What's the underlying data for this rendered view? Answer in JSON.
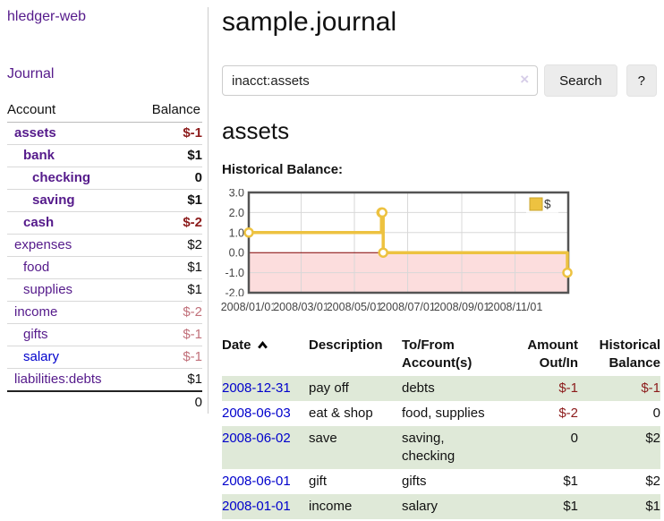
{
  "app": {
    "brand": "hledger-web"
  },
  "nav": {
    "journal": "Journal"
  },
  "sidebar": {
    "columns": {
      "account": "Account",
      "balance": "Balance"
    },
    "accounts": [
      {
        "name": "assets",
        "depth": 0,
        "bold": true,
        "balance": "$-1",
        "negative": "strong"
      },
      {
        "name": "bank",
        "depth": 1,
        "bold": true,
        "balance": "$1",
        "negative": "none"
      },
      {
        "name": "checking",
        "depth": 2,
        "bold": true,
        "balance": "0",
        "negative": "none"
      },
      {
        "name": "saving",
        "depth": 2,
        "bold": true,
        "balance": "$1",
        "negative": "none"
      },
      {
        "name": "cash",
        "depth": 1,
        "bold": true,
        "balance": "$-2",
        "negative": "strong"
      },
      {
        "name": "expenses",
        "depth": 0,
        "bold": false,
        "balance": "$2",
        "negative": "none"
      },
      {
        "name": "food",
        "depth": 1,
        "bold": false,
        "balance": "$1",
        "negative": "none"
      },
      {
        "name": "supplies",
        "depth": 1,
        "bold": false,
        "balance": "$1",
        "negative": "none"
      },
      {
        "name": "income",
        "depth": 0,
        "bold": false,
        "balance": "$-2",
        "negative": "soft"
      },
      {
        "name": "gifts",
        "depth": 1,
        "bold": false,
        "balance": "$-1",
        "negative": "soft"
      },
      {
        "name": "salary",
        "depth": 1,
        "bold": false,
        "balance": "$-1",
        "negative": "soft",
        "link_style": "blue"
      },
      {
        "name": "liabilities:debts",
        "depth": 0,
        "bold": false,
        "balance": "$1",
        "negative": "none"
      }
    ],
    "total": "0"
  },
  "header": {
    "title": "sample.journal"
  },
  "search": {
    "value": "inacct:assets",
    "clear_icon": "×",
    "button": "Search",
    "help_button": "?"
  },
  "account_page": {
    "title": "assets",
    "chart_label": "Historical Balance:"
  },
  "chart_data": {
    "type": "line",
    "title": "Historical Balance:",
    "series": [
      {
        "name": "$",
        "step": true,
        "points": [
          [
            "2008-01-01",
            1
          ],
          [
            "2008-06-01",
            2
          ],
          [
            "2008-06-02",
            2
          ],
          [
            "2008-06-03",
            0
          ],
          [
            "2008-12-31",
            -1
          ]
        ]
      }
    ],
    "x_ticks": [
      "2008/01/01",
      "2008/03/01",
      "2008/05/01",
      "2008/07/01",
      "2008/09/01",
      "2008/11/01"
    ],
    "y_ticks": [
      "3.0",
      "2.0",
      "1.0",
      "0.0",
      "-1.0",
      "-2.0"
    ],
    "ylim": [
      -2,
      3
    ],
    "xlim": [
      "2008-01-01",
      "2009-01-01"
    ],
    "grid": true,
    "legend_position": "top-right",
    "colors": {
      "line": "#edc240",
      "negative_region": "#fcdddd",
      "zero_line": "#800000",
      "grid": "#d8d8d8",
      "border": "#545454"
    }
  },
  "register": {
    "columns": [
      "Date",
      "Description",
      "To/From Account(s)",
      "Amount Out/In",
      "Historical Balance"
    ],
    "sort": "ascending",
    "rows": [
      {
        "date": "2008-12-31",
        "description": "pay off",
        "accounts": "debts",
        "amount": "$-1",
        "amount_negative": true,
        "balance": "$-1",
        "balance_negative": true
      },
      {
        "date": "2008-06-03",
        "description": "eat & shop",
        "accounts": "food, supplies",
        "amount": "$-2",
        "amount_negative": true,
        "balance": "0",
        "balance_negative": false
      },
      {
        "date": "2008-06-02",
        "description": "save",
        "accounts": "saving, checking",
        "amount": "0",
        "amount_negative": false,
        "balance": "$2",
        "balance_negative": false
      },
      {
        "date": "2008-06-01",
        "description": "gift",
        "accounts": "gifts",
        "amount": "$1",
        "amount_negative": false,
        "balance": "$2",
        "balance_negative": false
      },
      {
        "date": "2008-01-01",
        "description": "income",
        "accounts": "salary",
        "amount": "$1",
        "amount_negative": false,
        "balance": "$1",
        "balance_negative": false
      }
    ]
  }
}
